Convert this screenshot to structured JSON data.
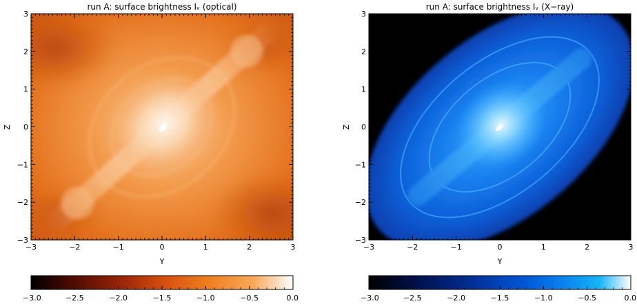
{
  "panels": [
    {
      "id": "optical",
      "title": "run A: surface brightness Iᵥ (optical)",
      "xlabel": "Y",
      "ylabel": "Z",
      "xticks": [
        "−3",
        "−2",
        "−1",
        "0",
        "1",
        "2",
        "3"
      ],
      "yticks": [
        "−3",
        "−2",
        "−1",
        "0",
        "1",
        "2",
        "3"
      ],
      "colorbar_ticks": [
        "−3.0",
        "−2.5",
        "−2.0",
        "−1.5",
        "−1.0",
        "−0.5",
        "0.0"
      ],
      "colormap": [
        "#000000",
        "#4a0a02",
        "#9b2607",
        "#d9520f",
        "#f0801f",
        "#f9a95a",
        "#ffffff"
      ]
    },
    {
      "id": "xray",
      "title": "run A: surface brightness Iᵥ (X−ray)",
      "xlabel": "Y",
      "ylabel": "Z",
      "xticks": [
        "−3",
        "−2",
        "−1",
        "0",
        "1",
        "2",
        "3"
      ],
      "yticks": [
        "−3",
        "−2",
        "−1",
        "0",
        "1",
        "2",
        "3"
      ],
      "colorbar_ticks": [
        "−3.0",
        "−2.5",
        "−2.0",
        "−1.5",
        "−1.0",
        "−0.5",
        "0.0"
      ],
      "colormap": [
        "#000000",
        "#00104a",
        "#00309a",
        "#0058d8",
        "#0a86f0",
        "#16b4f8",
        "#ffffff"
      ]
    }
  ]
}
